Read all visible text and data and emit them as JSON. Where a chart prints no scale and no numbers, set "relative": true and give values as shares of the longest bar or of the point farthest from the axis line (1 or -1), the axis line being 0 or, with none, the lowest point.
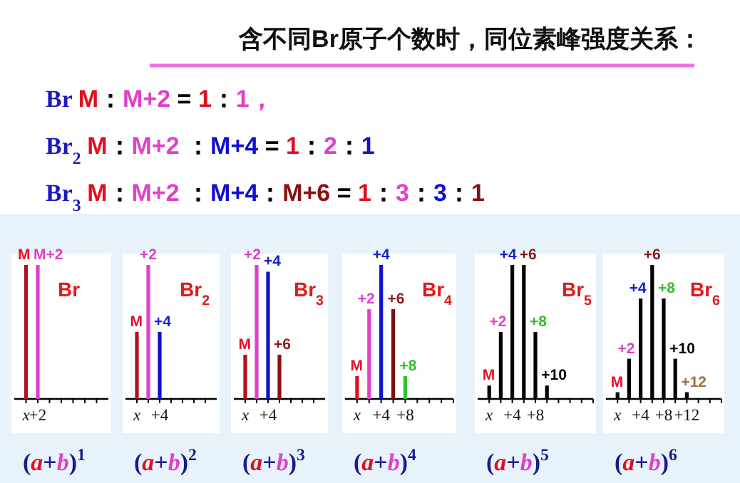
{
  "chart_data": [
    {
      "type": "other",
      "title": "含不同Br原子个数时，同位素峰强度关系：",
      "annotations": [
        "Br M：M+2 = 1：1，",
        "Br$_{2}$ M：M+2 ：M+4 = 1：2：1",
        "Br$_{3}$ M：M+2 ：M+4：M+6 = 1：3：3：1"
      ]
    },
    {
      "type": "bar",
      "relative": true,
      "title": "Br",
      "xlabel": "(*a*+*b*)$^{1}$",
      "categories": [
        "x",
        "+2",
        null,
        null,
        null,
        null,
        null
      ],
      "values": [
        1,
        1,
        null,
        null,
        null,
        null,
        null
      ],
      "colors": [
        "#b01020",
        "#e040c8",
        null,
        null,
        null,
        null,
        null
      ],
      "annotations": [
        "M",
        "M+2"
      ]
    },
    {
      "type": "bar",
      "relative": true,
      "title": "Br$_{2}$",
      "xlabel": "(*a*+*b*)$^{2}$",
      "categories": [
        "x",
        null,
        "+4",
        null,
        null,
        null,
        null
      ],
      "values": [
        0.5,
        1,
        0.5,
        null,
        null,
        null,
        null
      ],
      "colors": [
        "#b01020",
        "#e040c8",
        "#1010d0",
        null,
        null,
        null,
        null
      ],
      "annotations": [
        {
          "text": "M",
          "y": 0.5
        },
        {
          "text": "+2",
          "y": 1
        },
        {
          "text": "+4",
          "y": 0.5
        }
      ]
    },
    {
      "type": "bar",
      "relative": true,
      "title": "Br$_{3}$",
      "xlabel": "(*a*+*b*)$^{3}$",
      "categories": [
        "x",
        null,
        "+4",
        null,
        null,
        null,
        null
      ],
      "values": [
        0.33,
        1,
        0.95,
        0.33,
        null,
        null,
        null
      ],
      "colors": [
        "#b01020",
        "#e040c8",
        "#1010d0",
        "#8b1010",
        null,
        null,
        null
      ],
      "annotations": [
        {
          "text": "M",
          "y": 0.33
        },
        {
          "text": "+2",
          "y": 1
        },
        {
          "text": "+4",
          "y": 0.95
        },
        {
          "text": "+6",
          "y": 0.33
        }
      ]
    },
    {
      "type": "bar",
      "relative": true,
      "title": "Br$_{4}$",
      "xlabel": "(*a*+*b*)$^{4}$",
      "x": [
        0,
        2,
        4,
        6,
        8
      ],
      "values": [
        0.17,
        0.67,
        1,
        0.67,
        0.17
      ],
      "colors": [
        "#e01020",
        "#e040c8",
        "#1010d0",
        "#7a1010",
        "#30c030"
      ],
      "xlim": [
        -2,
        16
      ],
      "xticks": [
        {
          "value": 0,
          "label": "x"
        },
        {
          "value": 2,
          "label": null
        },
        {
          "value": 4,
          "label": "+4"
        },
        {
          "value": 6,
          "label": null
        },
        {
          "value": 8,
          "label": "+8"
        },
        {
          "value": 10,
          "label": null
        },
        {
          "value": 12,
          "label": null
        },
        {
          "value": 14,
          "label": null
        },
        {
          "value": 16,
          "label": null
        }
      ],
      "annotations": [
        {
          "text": "M",
          "x": 0,
          "y": 0.17
        },
        {
          "text": "+2",
          "x": 2,
          "y": 0.67
        },
        {
          "text": "+4",
          "x": 4,
          "y": 1
        },
        {
          "text": "+6",
          "x": 6,
          "y": 0.67
        },
        {
          "text": "+8",
          "x": 8,
          "y": 0.17
        }
      ]
    },
    {
      "type": "bar",
      "relative": true,
      "title": "Br$_{5}$",
      "xlabel": "(*a*+*b*)$^{5}$",
      "x": [
        0,
        2,
        4,
        6,
        8,
        10
      ],
      "values": [
        0.1,
        0.5,
        1,
        1,
        0.5,
        0.1
      ],
      "colors": [
        "#000000",
        "#000000",
        "#000000",
        "#000000",
        "#000000",
        "#000000"
      ],
      "xlim": [
        -2,
        18
      ],
      "xticks": [
        {
          "value": 0,
          "label": "x"
        },
        {
          "value": 2,
          "label": null
        },
        {
          "value": 4,
          "label": "+4"
        },
        {
          "value": 6,
          "label": null
        },
        {
          "value": 8,
          "label": "+8"
        },
        {
          "value": 10,
          "label": null
        },
        {
          "value": 12,
          "label": null
        },
        {
          "value": 14,
          "label": null
        },
        {
          "value": 16,
          "label": null
        },
        {
          "value": 18,
          "label": null
        }
      ],
      "annotations": [
        {
          "text": "M",
          "x": 0,
          "y": 0.1
        },
        {
          "text": "+2",
          "x": 2,
          "y": 0.5
        },
        {
          "text": "+4",
          "x": 4,
          "y": 1
        },
        {
          "text": "+6",
          "x": 6,
          "y": 1
        },
        {
          "text": "+8",
          "x": 8,
          "y": 0.5
        },
        {
          "text": "+10",
          "x": 10,
          "y": 0.1
        }
      ]
    },
    {
      "type": "bar",
      "relative": true,
      "title": "Br$_{6}$",
      "xlabel": "(*a*+*b*)$^{6}$",
      "x": [
        0,
        2,
        4,
        6,
        8,
        10,
        12
      ],
      "values": [
        0.05,
        0.3,
        0.75,
        1,
        0.75,
        0.3,
        0.05
      ],
      "colors": [
        "#000000",
        "#000000",
        "#000000",
        "#000000",
        "#000000",
        "#000000",
        "#000000"
      ],
      "xlim": [
        -2,
        18
      ],
      "xticks": [
        {
          "value": 0,
          "label": "x"
        },
        {
          "value": 2,
          "label": null
        },
        {
          "value": 4,
          "label": "+4"
        },
        {
          "value": 6,
          "label": null
        },
        {
          "value": 8,
          "label": "+8"
        },
        {
          "value": 10,
          "label": null
        },
        {
          "value": 12,
          "label": "+12"
        },
        {
          "value": 14,
          "label": null
        },
        {
          "value": 16,
          "label": null
        },
        {
          "value": 18,
          "label": null
        }
      ],
      "annotations": [
        {
          "text": "M",
          "x": 0,
          "y": 0.05
        },
        {
          "text": "+2",
          "x": 2,
          "y": 0.3
        },
        {
          "text": "+4",
          "x": 4,
          "y": 0.75
        },
        {
          "text": "+6",
          "x": 6,
          "y": 1
        },
        {
          "text": "+8",
          "x": 8,
          "y": 0.75
        },
        {
          "text": "+10",
          "x": 10,
          "y": 0.3
        },
        {
          "text": "+12",
          "x": 12,
          "y": 0.05
        }
      ]
    }
  ]
}
